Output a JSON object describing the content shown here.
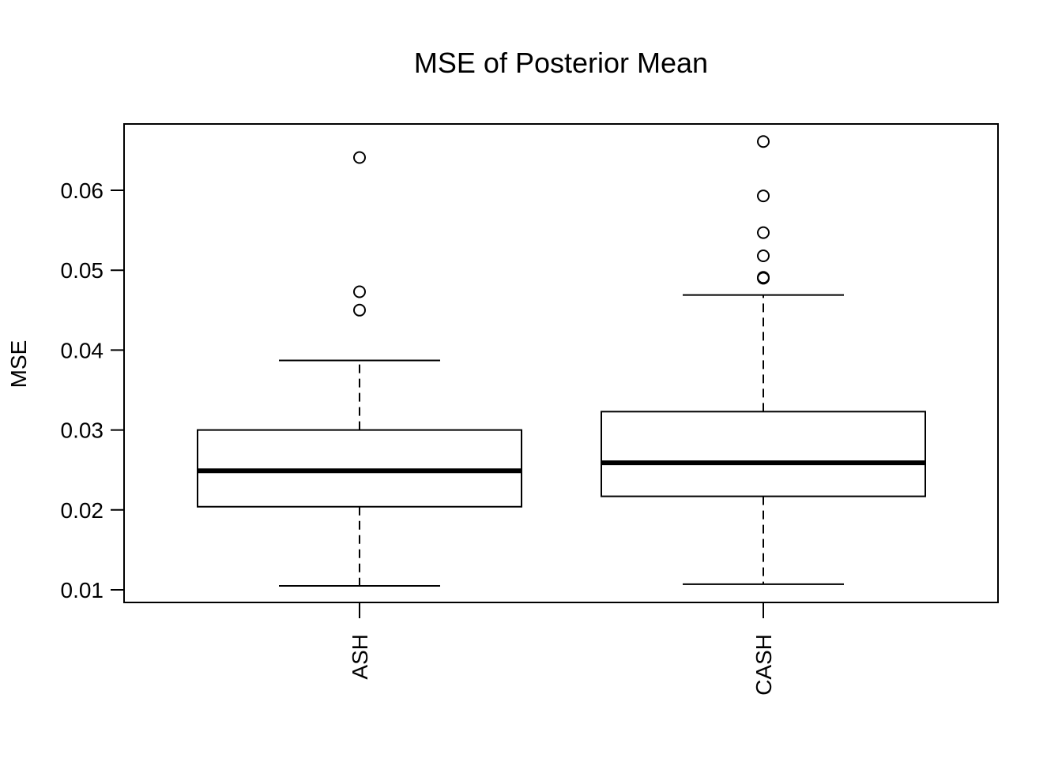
{
  "chart_data": {
    "type": "boxplot",
    "title": "MSE of Posterior Mean",
    "xlabel": "",
    "ylabel": "MSE",
    "categories": [
      "ASH",
      "CASH"
    ],
    "yticks": [
      "0.01",
      "0.02",
      "0.03",
      "0.04",
      "0.05",
      "0.06"
    ],
    "ylim": [
      0.0085,
      0.068
    ],
    "x_tick_label_orientation": "vertical",
    "grid": false,
    "boxes": [
      {
        "name": "ASH",
        "whisker_low": 0.0105,
        "q1": 0.0204,
        "median": 0.0249,
        "q3": 0.03,
        "whisker_high": 0.0387,
        "outliers": [
          0.0641,
          0.0473,
          0.045
        ]
      },
      {
        "name": "CASH",
        "whisker_low": 0.0107,
        "q1": 0.0217,
        "median": 0.0259,
        "q3": 0.0323,
        "whisker_high": 0.0469,
        "outliers": [
          0.0661,
          0.0593,
          0.0547,
          0.0518,
          0.049,
          0.0491
        ]
      }
    ]
  }
}
